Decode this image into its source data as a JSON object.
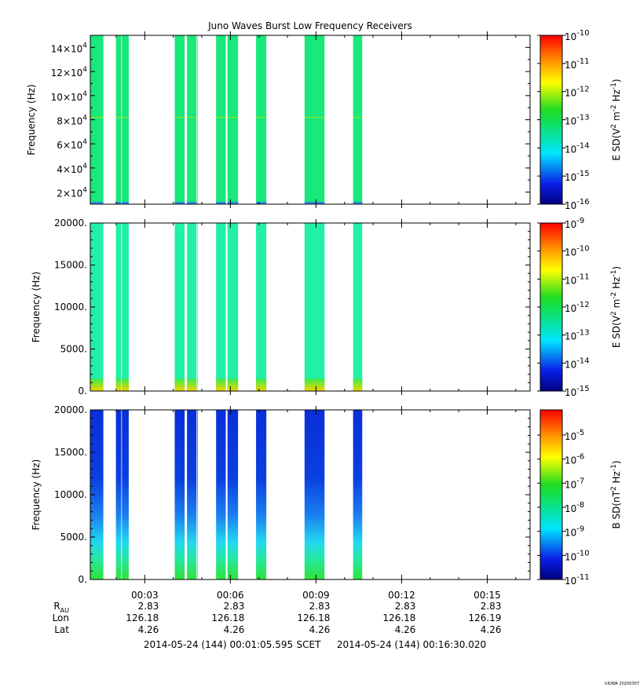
{
  "chart_data": {
    "type": "heatmap",
    "title": "Juno Waves Burst Low Frequency Receivers",
    "time_range": [
      "00:01:05.595",
      "00:16:30.020"
    ],
    "burst_intervals_min": [
      [
        1.1,
        1.55
      ],
      [
        1.99,
        2.18
      ],
      [
        2.2,
        2.44
      ],
      [
        4.05,
        4.4
      ],
      [
        4.48,
        4.81
      ],
      [
        4.83,
        4.84
      ],
      [
        5.5,
        5.84
      ],
      [
        5.9,
        6.27
      ],
      [
        6.9,
        7.26
      ],
      [
        8.6,
        9.3
      ],
      [
        10.3,
        10.62
      ]
    ],
    "x_ticks": [
      "00:03",
      "00:06",
      "00:09",
      "00:12",
      "00:15"
    ],
    "x_tick_minutes": [
      3,
      6,
      9,
      12,
      15
    ],
    "ephemeris": {
      "rows": [
        {
          "label": "R",
          "label_sub": "AU",
          "values": [
            "2.83",
            "2.83",
            "2.83",
            "2.83",
            "2.83"
          ]
        },
        {
          "label": "Lon",
          "values": [
            "126.18",
            "126.18",
            "126.18",
            "126.18",
            "126.19"
          ]
        },
        {
          "label": "Lat",
          "values": [
            "4.26",
            "4.26",
            "4.26",
            "4.26",
            "4.26"
          ]
        }
      ]
    },
    "footer": {
      "start": "2014-05-24 (144) 00:01:05.595",
      "scet": "SCET",
      "end": "2014-05-24 (144) 00:16:30.020"
    },
    "stamp": "UIOWA 20200307",
    "panels": [
      {
        "ylabel": "Frequency (Hz)",
        "ylim": [
          10000,
          150000
        ],
        "yticks": [
          20000,
          40000,
          60000,
          80000,
          100000,
          120000,
          140000
        ],
        "ytick_mantissa": [
          "2",
          "4",
          "6",
          "8",
          "10",
          "12",
          "14"
        ],
        "ytick_base": "×10",
        "ytick_exp": "4",
        "colorbar": {
          "label": "E SD(V² m⁻² Hz⁻¹)",
          "label_main": "E SD(V",
          "label_parts": [
            "2",
            " m",
            "-2",
            " Hz",
            "-1",
            ")"
          ],
          "exponents": [
            "-10",
            "-11",
            "-12",
            "-13",
            "-14",
            "-15",
            "-16"
          ]
        },
        "fill": "#19e87a",
        "line_freq": 82000,
        "line_color": "#a8e40f"
      },
      {
        "ylabel": "Frequency (Hz)",
        "ylim": [
          0,
          20000
        ],
        "yticks": [
          0,
          5000,
          10000,
          15000,
          20000
        ],
        "ytick_labels": [
          "0.",
          "5000.",
          "10000.",
          "15000.",
          "20000."
        ],
        "colorbar": {
          "label": "E SD(V² m⁻² Hz⁻¹)",
          "label_main": "E SD(V",
          "label_parts": [
            "2",
            " m",
            "-2",
            " Hz",
            "-1",
            ")"
          ],
          "exponents": [
            "-9",
            "-10",
            "-11",
            "-12",
            "-13",
            "-14",
            "-15"
          ]
        },
        "fill": "#22f0a6",
        "low_band_colors": [
          "#f4d400",
          "#9ee21a",
          "#36ea5a"
        ]
      },
      {
        "ylabel": "Frequency (Hz)",
        "ylim": [
          0,
          20000
        ],
        "yticks": [
          0,
          5000,
          10000,
          15000,
          20000
        ],
        "ytick_labels": [
          "0.",
          "5000.",
          "10000.",
          "15000.",
          "20000."
        ],
        "colorbar": {
          "label": "B SD(nT² Hz⁻¹)",
          "label_main": "B SD(nT",
          "label_parts": [
            "2",
            " Hz",
            "-1",
            ")"
          ],
          "exponents": [
            "-5",
            "-6",
            "-7",
            "-8",
            "-9",
            "-10",
            "-11"
          ]
        },
        "gradient": [
          "#0a2fd8",
          "#0a3fe0",
          "#1a7ff0",
          "#22d8f0",
          "#25e890",
          "#30e23a"
        ]
      }
    ]
  }
}
